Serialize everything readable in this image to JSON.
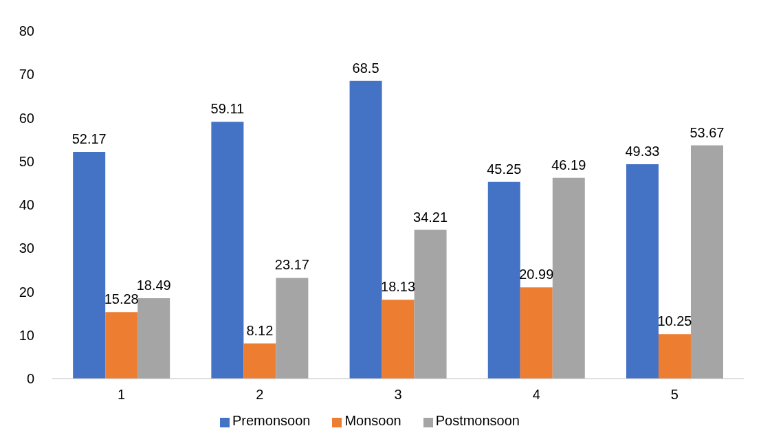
{
  "chart_data": {
    "type": "bar",
    "categories": [
      "1",
      "2",
      "3",
      "4",
      "5"
    ],
    "series": [
      {
        "name": "Premonsoon",
        "color": "#4472c4",
        "values": [
          52.17,
          59.11,
          68.5,
          45.25,
          49.33
        ]
      },
      {
        "name": "Monsoon",
        "color": "#ed7d31",
        "values": [
          15.28,
          8.12,
          18.13,
          20.99,
          10.25
        ]
      },
      {
        "name": "Postmonsoon",
        "color": "#a5a5a5",
        "values": [
          18.49,
          23.17,
          34.21,
          46.19,
          53.67
        ]
      }
    ],
    "ylim": [
      0,
      80
    ],
    "yticks": [
      0,
      10,
      20,
      30,
      40,
      50,
      60,
      70,
      80
    ],
    "grid": false,
    "legend": "bottom",
    "data_labels": true
  }
}
